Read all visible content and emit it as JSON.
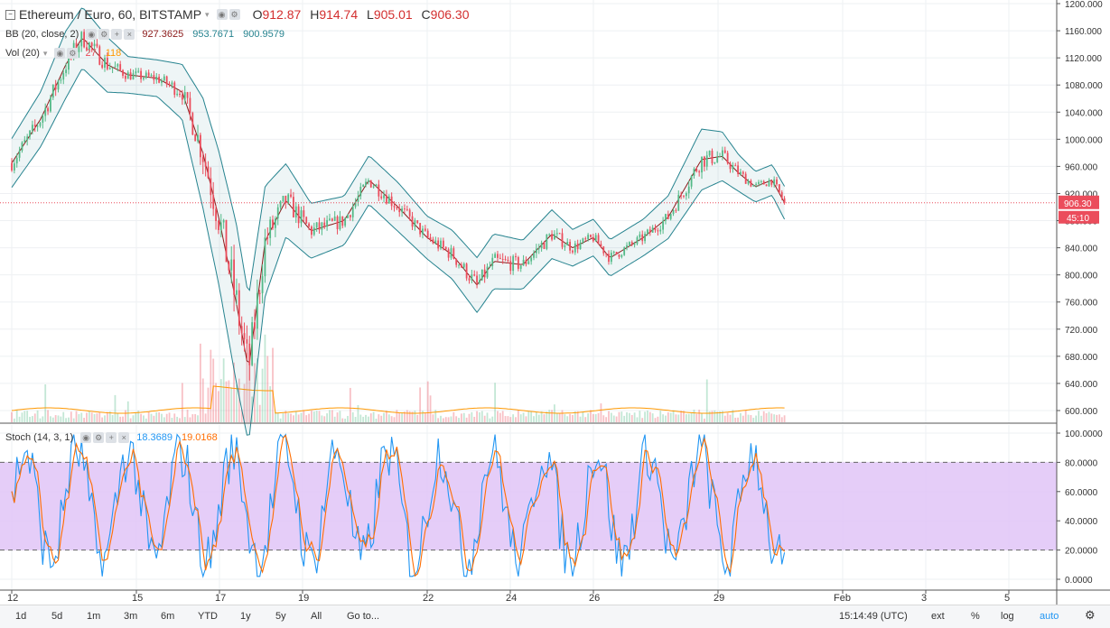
{
  "header": {
    "symbol": "Ethereum / Euro, 60, BITSTAMP",
    "o_label": "O",
    "o_value": "912.87",
    "h_label": "H",
    "h_value": "914.74",
    "l_label": "L",
    "l_value": "905.01",
    "c_label": "C",
    "c_value": "906.30"
  },
  "bb_legend": {
    "label": "BB (20, close, 2)",
    "v1": "927.3625",
    "v2": "953.7671",
    "v3": "900.9579"
  },
  "vol_legend": {
    "label": "Vol (20)",
    "v1": "27",
    "v2": "118"
  },
  "stoch_legend": {
    "label": "Stoch (14, 3, 1)",
    "k": "18.3689",
    "d": "19.0168"
  },
  "price_badge": "906.30",
  "time_badge": "45:10",
  "bottom_bar": {
    "timeframes": [
      "1d",
      "5d",
      "1m",
      "3m",
      "6m",
      "YTD",
      "1y",
      "5y",
      "All"
    ],
    "goto": "Go to...",
    "clock": "15:14:49 (UTC)",
    "ext": "ext",
    "percent": "%",
    "log": "log",
    "auto": "auto"
  },
  "colors": {
    "up": "#53b987",
    "down": "#eb4d5c",
    "bb_band": "#26838f",
    "bb_basis": "#8b1a1a",
    "stoch_k": "#2196f3",
    "stoch_d": "#ff6d00",
    "stoch_bg": "#e1c4f7"
  },
  "chart_data": [
    {
      "type": "candlestick",
      "title": "Ethereum / Euro, 60, BITSTAMP",
      "x_ticks": [
        "12",
        "15",
        "17",
        "19",
        "22",
        "24",
        "26",
        "29",
        "Feb",
        "3",
        "5"
      ],
      "y_ticks": [
        "1200.000",
        "1160.000",
        "1120.000",
        "1080.000",
        "1040.000",
        "1000.000",
        "960.000",
        "920.000",
        "880.000",
        "840.000",
        "800.000",
        "760.000",
        "720.000",
        "680.000",
        "640.000",
        "600.000"
      ],
      "ylim": [
        590,
        1200
      ],
      "last_price": 906.3,
      "anchors": [
        {
          "day": 12.0,
          "price": 965,
          "bb_w": 40
        },
        {
          "day": 12.7,
          "price": 1030,
          "bb_w": 45
        },
        {
          "day": 13.3,
          "price": 1110,
          "bb_w": 55
        },
        {
          "day": 13.7,
          "price": 1150,
          "bb_w": 50
        },
        {
          "day": 14.3,
          "price": 1110,
          "bb_w": 45
        },
        {
          "day": 14.8,
          "price": 1095,
          "bb_w": 30
        },
        {
          "day": 15.5,
          "price": 1090,
          "bb_w": 30
        },
        {
          "day": 16.1,
          "price": 1070,
          "bb_w": 45
        },
        {
          "day": 16.6,
          "price": 980,
          "bb_w": 90
        },
        {
          "day": 17.0,
          "price": 880,
          "bb_w": 110
        },
        {
          "day": 17.4,
          "price": 760,
          "bb_w": 130
        },
        {
          "day": 17.7,
          "price": 660,
          "bb_w": 120
        },
        {
          "day": 18.1,
          "price": 850,
          "bb_w": 90
        },
        {
          "day": 18.6,
          "price": 910,
          "bb_w": 60
        },
        {
          "day": 19.2,
          "price": 865,
          "bb_w": 45
        },
        {
          "day": 20.0,
          "price": 880,
          "bb_w": 40
        },
        {
          "day": 20.6,
          "price": 940,
          "bb_w": 40
        },
        {
          "day": 21.3,
          "price": 900,
          "bb_w": 40
        },
        {
          "day": 22.0,
          "price": 855,
          "bb_w": 35
        },
        {
          "day": 22.6,
          "price": 830,
          "bb_w": 40
        },
        {
          "day": 23.2,
          "price": 785,
          "bb_w": 45
        },
        {
          "day": 23.6,
          "price": 820,
          "bb_w": 45
        },
        {
          "day": 24.3,
          "price": 815,
          "bb_w": 40
        },
        {
          "day": 25.0,
          "price": 860,
          "bb_w": 40
        },
        {
          "day": 25.5,
          "price": 840,
          "bb_w": 30
        },
        {
          "day": 26.0,
          "price": 855,
          "bb_w": 30
        },
        {
          "day": 26.4,
          "price": 825,
          "bb_w": 30
        },
        {
          "day": 27.2,
          "price": 855,
          "bb_w": 30
        },
        {
          "day": 27.8,
          "price": 885,
          "bb_w": 35
        },
        {
          "day": 28.6,
          "price": 970,
          "bb_w": 50
        },
        {
          "day": 29.1,
          "price": 975,
          "bb_w": 40
        },
        {
          "day": 29.5,
          "price": 950,
          "bb_w": 30
        },
        {
          "day": 29.9,
          "price": 930,
          "bb_w": 25
        },
        {
          "day": 30.3,
          "price": 940,
          "bb_w": 25
        },
        {
          "day": 30.6,
          "price": 906.3,
          "bb_w": 27
        }
      ]
    },
    {
      "type": "line",
      "title": "Stoch (14, 3, 1)",
      "y_ticks": [
        "100.0000",
        "80.0000",
        "60.0000",
        "40.0000",
        "20.0000",
        "0.0000"
      ],
      "ylim": [
        -5,
        102
      ],
      "upper_band": 80,
      "lower_band": 20,
      "last_k": 18.3689,
      "last_d": 19.0168
    }
  ]
}
